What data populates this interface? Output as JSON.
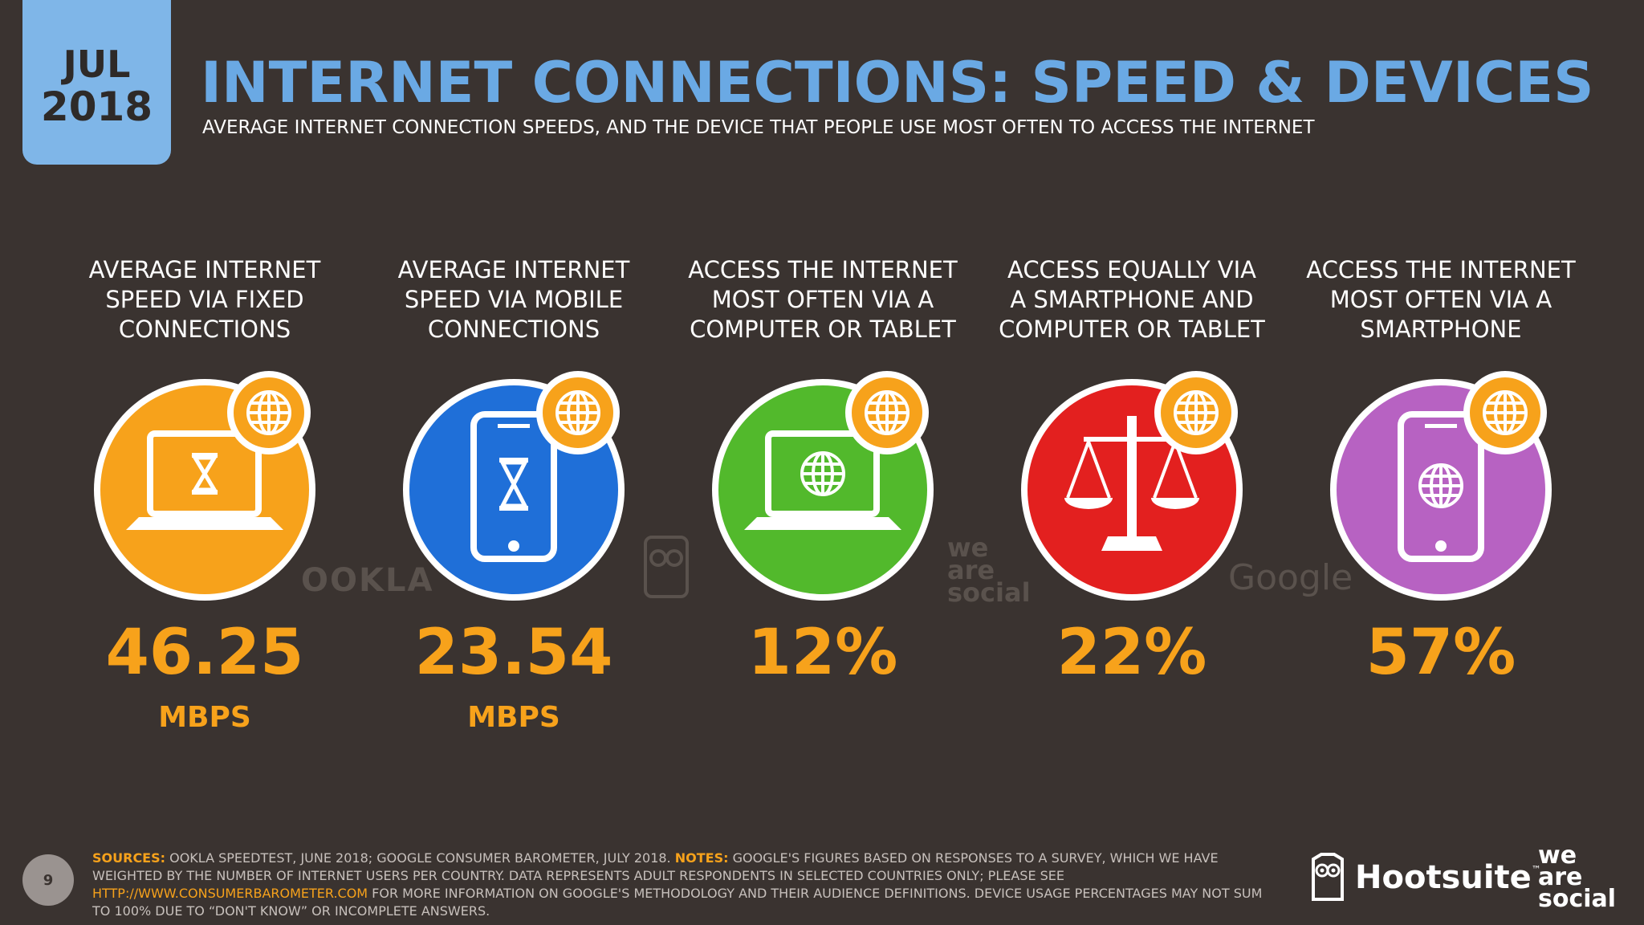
{
  "header": {
    "month": "JUL",
    "year": "2018",
    "title": "INTERNET CONNECTIONS: SPEED & DEVICES",
    "subtitle": "AVERAGE INTERNET CONNECTION SPEEDS, AND THE DEVICE THAT PEOPLE USE MOST OFTEN TO ACCESS THE INTERNET"
  },
  "stats": [
    {
      "label_lines": [
        "AVERAGE INTERNET",
        "SPEED VIA FIXED",
        "CONNECTIONS"
      ],
      "value": "46.25",
      "unit": "MBPS",
      "icon": "laptop-hourglass-icon",
      "color": "#f7a21b"
    },
    {
      "label_lines": [
        "AVERAGE INTERNET",
        "SPEED VIA MOBILE",
        "CONNECTIONS"
      ],
      "value": "23.54",
      "unit": "MBPS",
      "icon": "smartphone-hourglass-icon",
      "color": "#1f6fd8"
    },
    {
      "label_lines": [
        "ACCESS THE INTERNET",
        "MOST OFTEN VIA A",
        "COMPUTER OR TABLET"
      ],
      "value": "12%",
      "unit": "",
      "icon": "laptop-globe-icon",
      "color": "#52b92c"
    },
    {
      "label_lines": [
        "ACCESS EQUALLY VIA",
        "A SMARTPHONE AND",
        "COMPUTER OR TABLET"
      ],
      "value": "22%",
      "unit": "",
      "icon": "scales-icon",
      "color": "#e3201f"
    },
    {
      "label_lines": [
        "ACCESS THE INTERNET",
        "MOST OFTEN VIA A",
        "SMARTPHONE"
      ],
      "value": "57%",
      "unit": "",
      "icon": "smartphone-globe-icon",
      "color": "#b762c2"
    }
  ],
  "watermarks": {
    "ookla": "OOKLA",
    "we": "we",
    "are": "are",
    "social": "social",
    "google": "Google"
  },
  "footer": {
    "page_number": "9",
    "sources_label": "SOURCES:",
    "sources_text": " OOKLA SPEEDTEST, JUNE 2018; GOOGLE CONSUMER BAROMETER, JULY 2018. ",
    "notes_label": "NOTES:",
    "notes_text_1": " GOOGLE'S FIGURES BASED ON RESPONSES TO A SURVEY, WHICH WE HAVE WEIGHTED BY THE NUMBER OF INTERNET USERS PER COUNTRY. DATA REPRESENTS ADULT RESPONDENTS IN SELECTED COUNTRIES ONLY; PLEASE SEE ",
    "link": "HTTP://WWW.CONSUMERBAROMETER.COM",
    "notes_text_2": " FOR MORE INFORMATION ON GOOGLE'S METHODOLOGY AND THEIR AUDIENCE DEFINITIONS. DEVICE USAGE PERCENTAGES MAY NOT SUM TO 100% DUE TO “DON'T KNOW” OR INCOMPLETE ANSWERS."
  },
  "brands": {
    "hootsuite": "Hootsuite",
    "tm": "™",
    "we": "we",
    "are": "are",
    "social": "social"
  },
  "colors": {
    "background": "#3a3330",
    "title_blue": "#6aa9e4",
    "accent_orange": "#f7a21b"
  }
}
